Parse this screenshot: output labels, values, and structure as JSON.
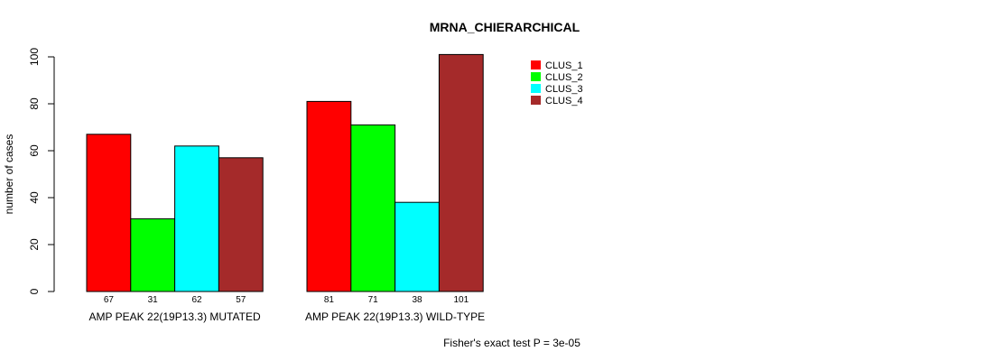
{
  "chart_data": {
    "type": "bar",
    "title": "MRNA_CHIERARCHICAL",
    "xlabel": "",
    "ylabel": "number of cases",
    "ylim": [
      0,
      100
    ],
    "yticks": [
      0,
      20,
      40,
      60,
      80,
      100
    ],
    "categories": [
      "AMP PEAK 22(19P13.3) MUTATED",
      "AMP PEAK 22(19P13.3) WILD-TYPE"
    ],
    "series": [
      {
        "name": "CLUS_1",
        "color": "#ff0000",
        "values": [
          67,
          81
        ]
      },
      {
        "name": "CLUS_2",
        "color": "#00ff00",
        "values": [
          31,
          71
        ]
      },
      {
        "name": "CLUS_3",
        "color": "#00ffff",
        "values": [
          62,
          38
        ]
      },
      {
        "name": "CLUS_4",
        "color": "#a52a2a",
        "values": [
          57,
          101
        ]
      }
    ],
    "count_labels": [
      [
        "67",
        "31",
        "62",
        "57"
      ],
      [
        "81",
        "71",
        "38",
        "101"
      ]
    ],
    "legend": {
      "placement": "top-right",
      "entries": [
        "CLUS_1",
        "CLUS_2",
        "CLUS_3",
        "CLUS_4"
      ]
    },
    "footnote": "Fisher's exact test P = 3e-05",
    "grid": false
  }
}
